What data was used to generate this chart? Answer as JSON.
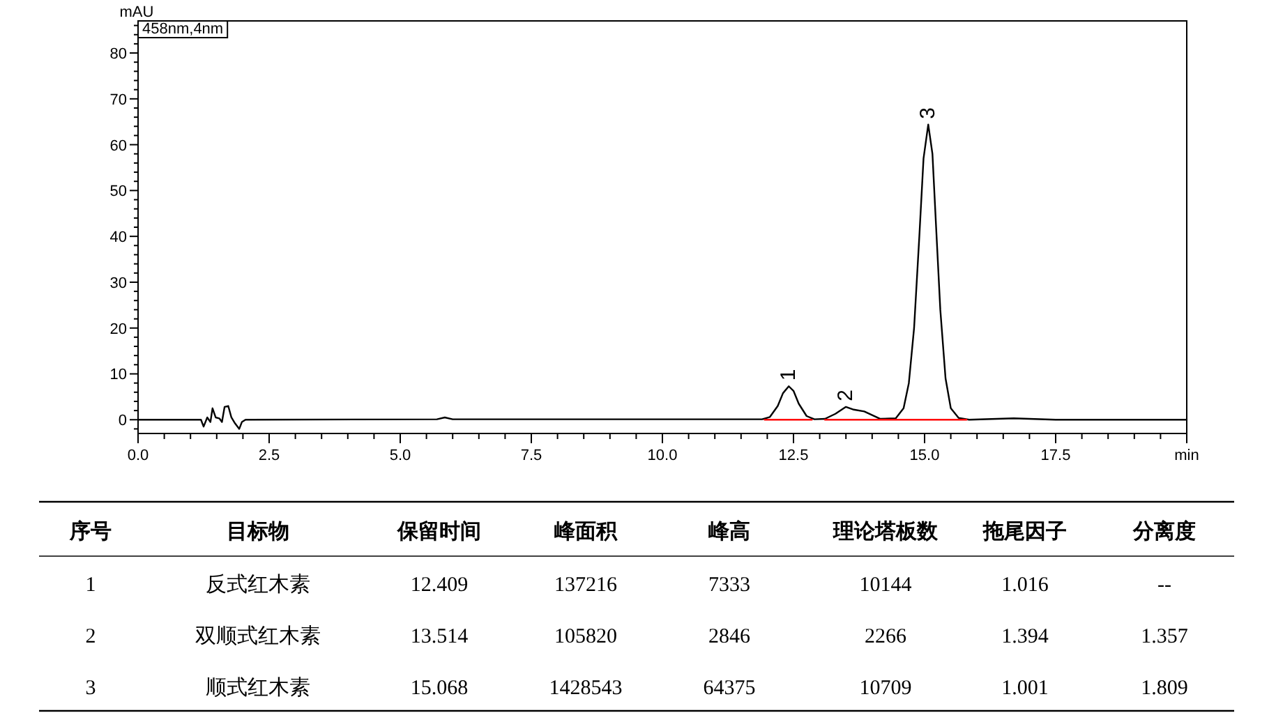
{
  "chart_data": [
    {
      "type": "line",
      "xlabel": "min",
      "ylabel": "mAU",
      "xlim": [
        0,
        20
      ],
      "ylim": [
        -3,
        87
      ],
      "xticks": [
        {
          "value": 0,
          "label": "0.0"
        },
        {
          "value": 2.5,
          "label": "2.5"
        },
        {
          "value": 5,
          "label": "5.0"
        },
        {
          "value": 7.5,
          "label": "7.5"
        },
        {
          "value": 10,
          "label": "10.0"
        },
        {
          "value": 12.5,
          "label": "12.5"
        },
        {
          "value": 15,
          "label": "15.0"
        },
        {
          "value": 17.5,
          "label": "17.5"
        },
        {
          "value": 20,
          "label": null
        }
      ],
      "yticks": [
        0,
        10,
        20,
        30,
        40,
        50,
        60,
        70,
        80
      ],
      "grid": false,
      "marker": "none",
      "line_style": "solid",
      "series": [
        {
          "color": "#000000",
          "x": [
            0,
            1.2,
            1.25,
            1.32,
            1.38,
            1.42,
            1.48,
            1.55,
            1.6,
            1.65,
            1.72,
            1.78,
            1.85,
            1.93,
            1.98,
            2.05,
            5.7,
            5.85,
            6.0,
            11.9,
            12.05,
            12.2,
            12.3,
            12.41,
            12.5,
            12.6,
            12.75,
            12.9,
            13.1,
            13.3,
            13.5,
            13.65,
            13.85,
            14.0,
            14.15,
            14.45,
            14.6,
            14.7,
            14.8,
            14.9,
            14.98,
            15.07,
            15.15,
            15.22,
            15.3,
            15.4,
            15.5,
            15.65,
            15.85,
            16.7,
            17.5,
            20
          ],
          "values": [
            0,
            0,
            -1.5,
            0.5,
            -0.5,
            2.5,
            0.5,
            0.3,
            -0.5,
            2.8,
            3.0,
            0.5,
            -0.8,
            -2.0,
            -0.5,
            0,
            0.1,
            0.5,
            0.1,
            0.1,
            0.6,
            3.0,
            5.8,
            7.3,
            6.3,
            3.5,
            0.8,
            0.1,
            0.2,
            1.3,
            2.8,
            2.2,
            1.8,
            1.0,
            0.2,
            0.3,
            2.5,
            8,
            20,
            40,
            57,
            64.4,
            58,
            42,
            24,
            9,
            2.5,
            0.4,
            0,
            0.3,
            0,
            0
          ]
        },
        {
          "color": "#ff0000",
          "x": [
            11.95,
            12.85
          ],
          "values": [
            0,
            0
          ]
        },
        {
          "color": "#ff0000",
          "x": [
            13.1,
            15.8
          ],
          "values": [
            0,
            0
          ]
        }
      ],
      "annotations": [
        "458nm,4nm",
        {
          "text": "1",
          "x": 12.41,
          "y": 7.3
        },
        {
          "text": "2",
          "x": 13.5,
          "y": 2.8
        },
        {
          "text": "3",
          "x": 15.07,
          "y": 64.4
        }
      ]
    },
    {
      "type": "other",
      "categories": [
        "序号",
        "目标物",
        "保留时间",
        "峰面积",
        "峰高",
        "理论塔板数",
        "拖尾因子",
        "分离度"
      ],
      "annotations": [
        "1",
        "反式红木素",
        "12.409",
        "137216",
        "7333",
        "10144",
        "1.016",
        "--",
        "2",
        "双顺式红木素",
        "13.514",
        "105820",
        "2846",
        "2266",
        "1.394",
        "1.357",
        "3",
        "顺式红木素",
        "15.068",
        "1428543",
        "64375",
        "10709",
        "1.001",
        "1.809"
      ]
    }
  ]
}
